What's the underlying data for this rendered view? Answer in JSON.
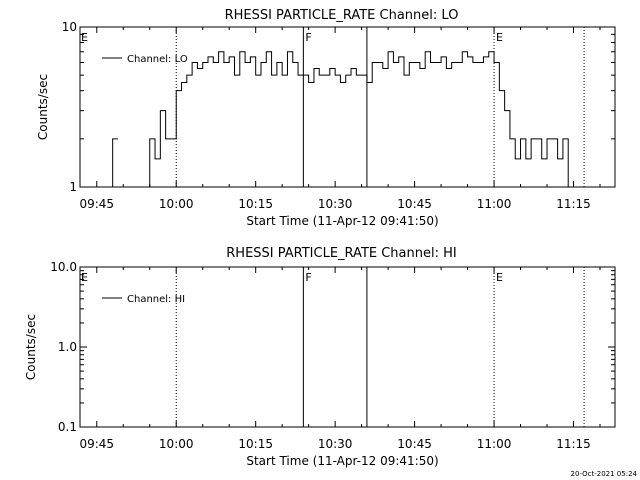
{
  "footer_timestamp": "20-Oct-2021 05:24",
  "chart_data": [
    {
      "type": "line",
      "title": "RHESSI PARTICLE_RATE Channel: LO",
      "xlabel": "Start Time (11-Apr-12 09:41:50)",
      "ylabel": "Counts/sec",
      "y_scale": "log",
      "ylim": [
        1,
        10
      ],
      "y_ticks": [
        {
          "value": 1,
          "label": "1"
        },
        {
          "value": 10,
          "label": "10"
        }
      ],
      "x_ticks": [
        "09:45",
        "10:00",
        "10:15",
        "10:30",
        "10:45",
        "11:00",
        "11:15"
      ],
      "legend": {
        "position": "top-left",
        "entries": [
          "Channel: LO"
        ]
      },
      "markers": [
        {
          "time": "10:00",
          "label": "",
          "style": "dotted"
        },
        {
          "time": "10:24",
          "label": "F",
          "style": "solid"
        },
        {
          "time": "10:36",
          "label": "",
          "style": "solid"
        },
        {
          "time": "11:00",
          "label": "E",
          "style": "dotted"
        },
        {
          "time": "11:17",
          "label": "",
          "style": "dotted"
        }
      ],
      "edge_labels": [
        "E"
      ],
      "series": [
        {
          "name": "Channel: LO",
          "color": "#000000",
          "step": true,
          "x": [
            "09:48",
            "09:49",
            "09:55",
            "09:56",
            "09:57",
            "09:58",
            "09:59",
            "10:00",
            "10:01",
            "10:02",
            "10:03",
            "10:04",
            "10:05",
            "10:06",
            "10:07",
            "10:08",
            "10:09",
            "10:10",
            "10:11",
            "10:12",
            "10:13",
            "10:14",
            "10:15",
            "10:16",
            "10:17",
            "10:18",
            "10:19",
            "10:20",
            "10:21",
            "10:22",
            "10:23",
            "10:24",
            "10:25",
            "10:26",
            "10:27",
            "10:28",
            "10:29",
            "10:30",
            "10:31",
            "10:32",
            "10:33",
            "10:34",
            "10:35",
            "10:36",
            "10:37",
            "10:38",
            "10:39",
            "10:40",
            "10:41",
            "10:42",
            "10:43",
            "10:44",
            "10:45",
            "10:46",
            "10:47",
            "10:48",
            "10:49",
            "10:50",
            "10:51",
            "10:52",
            "10:53",
            "10:54",
            "10:55",
            "10:56",
            "10:57",
            "10:58",
            "10:59",
            "11:00",
            "11:01",
            "11:02",
            "11:03",
            "11:04",
            "11:05",
            "11:06",
            "11:07",
            "11:08",
            "11:09",
            "11:10",
            "11:11",
            "11:12",
            "11:13"
          ],
          "values": [
            2,
            null,
            2,
            1.5,
            3,
            2,
            2,
            4,
            4.5,
            5,
            6,
            5.5,
            6,
            6.5,
            6,
            7,
            6,
            6.5,
            5,
            7,
            6,
            6.5,
            5,
            6,
            7,
            5,
            6,
            5,
            7,
            6,
            5,
            5,
            4.5,
            5.5,
            5,
            5,
            5.5,
            5,
            4.5,
            5,
            5.5,
            5,
            5,
            4.5,
            6,
            6,
            5.5,
            7,
            6,
            6.5,
            5,
            6,
            6,
            5.5,
            7,
            6,
            6,
            6.5,
            5.5,
            6,
            6,
            7,
            6.5,
            6,
            6,
            6.5,
            7,
            6,
            4,
            3,
            2,
            1.5,
            2,
            1.5,
            2,
            2,
            1.5,
            2,
            2,
            1.5,
            2
          ]
        }
      ]
    },
    {
      "type": "line",
      "title": "RHESSI PARTICLE_RATE Channel: HI",
      "xlabel": "Start Time (11-Apr-12 09:41:50)",
      "ylabel": "Counts/sec",
      "y_scale": "log",
      "ylim": [
        0.1,
        10
      ],
      "y_ticks": [
        {
          "value": 0.1,
          "label": "0.1"
        },
        {
          "value": 1,
          "label": "1.0"
        },
        {
          "value": 10,
          "label": "10.0"
        }
      ],
      "x_ticks": [
        "09:45",
        "10:00",
        "10:15",
        "10:30",
        "10:45",
        "11:00",
        "11:15"
      ],
      "legend": {
        "position": "top-left",
        "entries": [
          "Channel: HI"
        ]
      },
      "markers": [
        {
          "time": "10:00",
          "label": "",
          "style": "dotted"
        },
        {
          "time": "10:24",
          "label": "F",
          "style": "solid"
        },
        {
          "time": "10:36",
          "label": "",
          "style": "solid"
        },
        {
          "time": "11:00",
          "label": "E",
          "style": "dotted"
        },
        {
          "time": "11:17",
          "label": "",
          "style": "dotted"
        }
      ],
      "edge_labels": [
        "E"
      ],
      "series": [
        {
          "name": "Channel: HI",
          "color": "#000000",
          "step": true,
          "x": [],
          "values": []
        }
      ]
    }
  ]
}
